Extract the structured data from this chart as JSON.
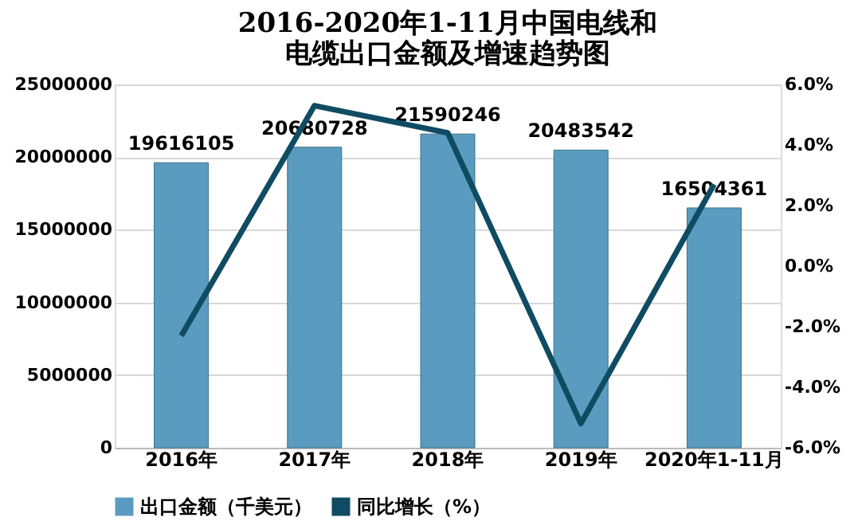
{
  "chart_data": {
    "type": "bar",
    "title": "2016-2020年1-11月中国电线和电缆出口金额及增速趋势图",
    "categories": [
      "2016年",
      "2017年",
      "2018年",
      "2019年",
      "2020年1-11月"
    ],
    "series": [
      {
        "name": "出口金额（千美元）",
        "color": "#5a9cc0",
        "values": [
          19616105,
          20680728,
          21590246,
          20483542,
          16504361
        ],
        "value_labels": [
          "19616105",
          "20680728",
          "21590246",
          "20483542",
          "16504361"
        ]
      },
      {
        "name": "同比增长（%）",
        "type": "line",
        "axis": "y2",
        "color": "#0f4c63",
        "values": [
          -2.3,
          5.3,
          4.4,
          -5.2,
          2.7
        ]
      }
    ],
    "ylim": [
      0,
      25000000
    ],
    "yticks": [
      0,
      5000000,
      10000000,
      15000000,
      20000000,
      25000000
    ],
    "y2lim": [
      -6,
      6
    ],
    "y2ticks": [
      {
        "value": -6,
        "label": "-6.0%"
      },
      {
        "value": -4,
        "label": "-4.0%"
      },
      {
        "value": -2,
        "label": "-2.0%"
      },
      {
        "value": 0,
        "label": "0.0%"
      },
      {
        "value": 2,
        "label": "2.0%"
      },
      {
        "value": 4,
        "label": "4.0%"
      },
      {
        "value": 6,
        "label": "6.0%"
      }
    ],
    "grid": "y",
    "legend": "bottom",
    "marker": "none",
    "line_style": "solid"
  }
}
